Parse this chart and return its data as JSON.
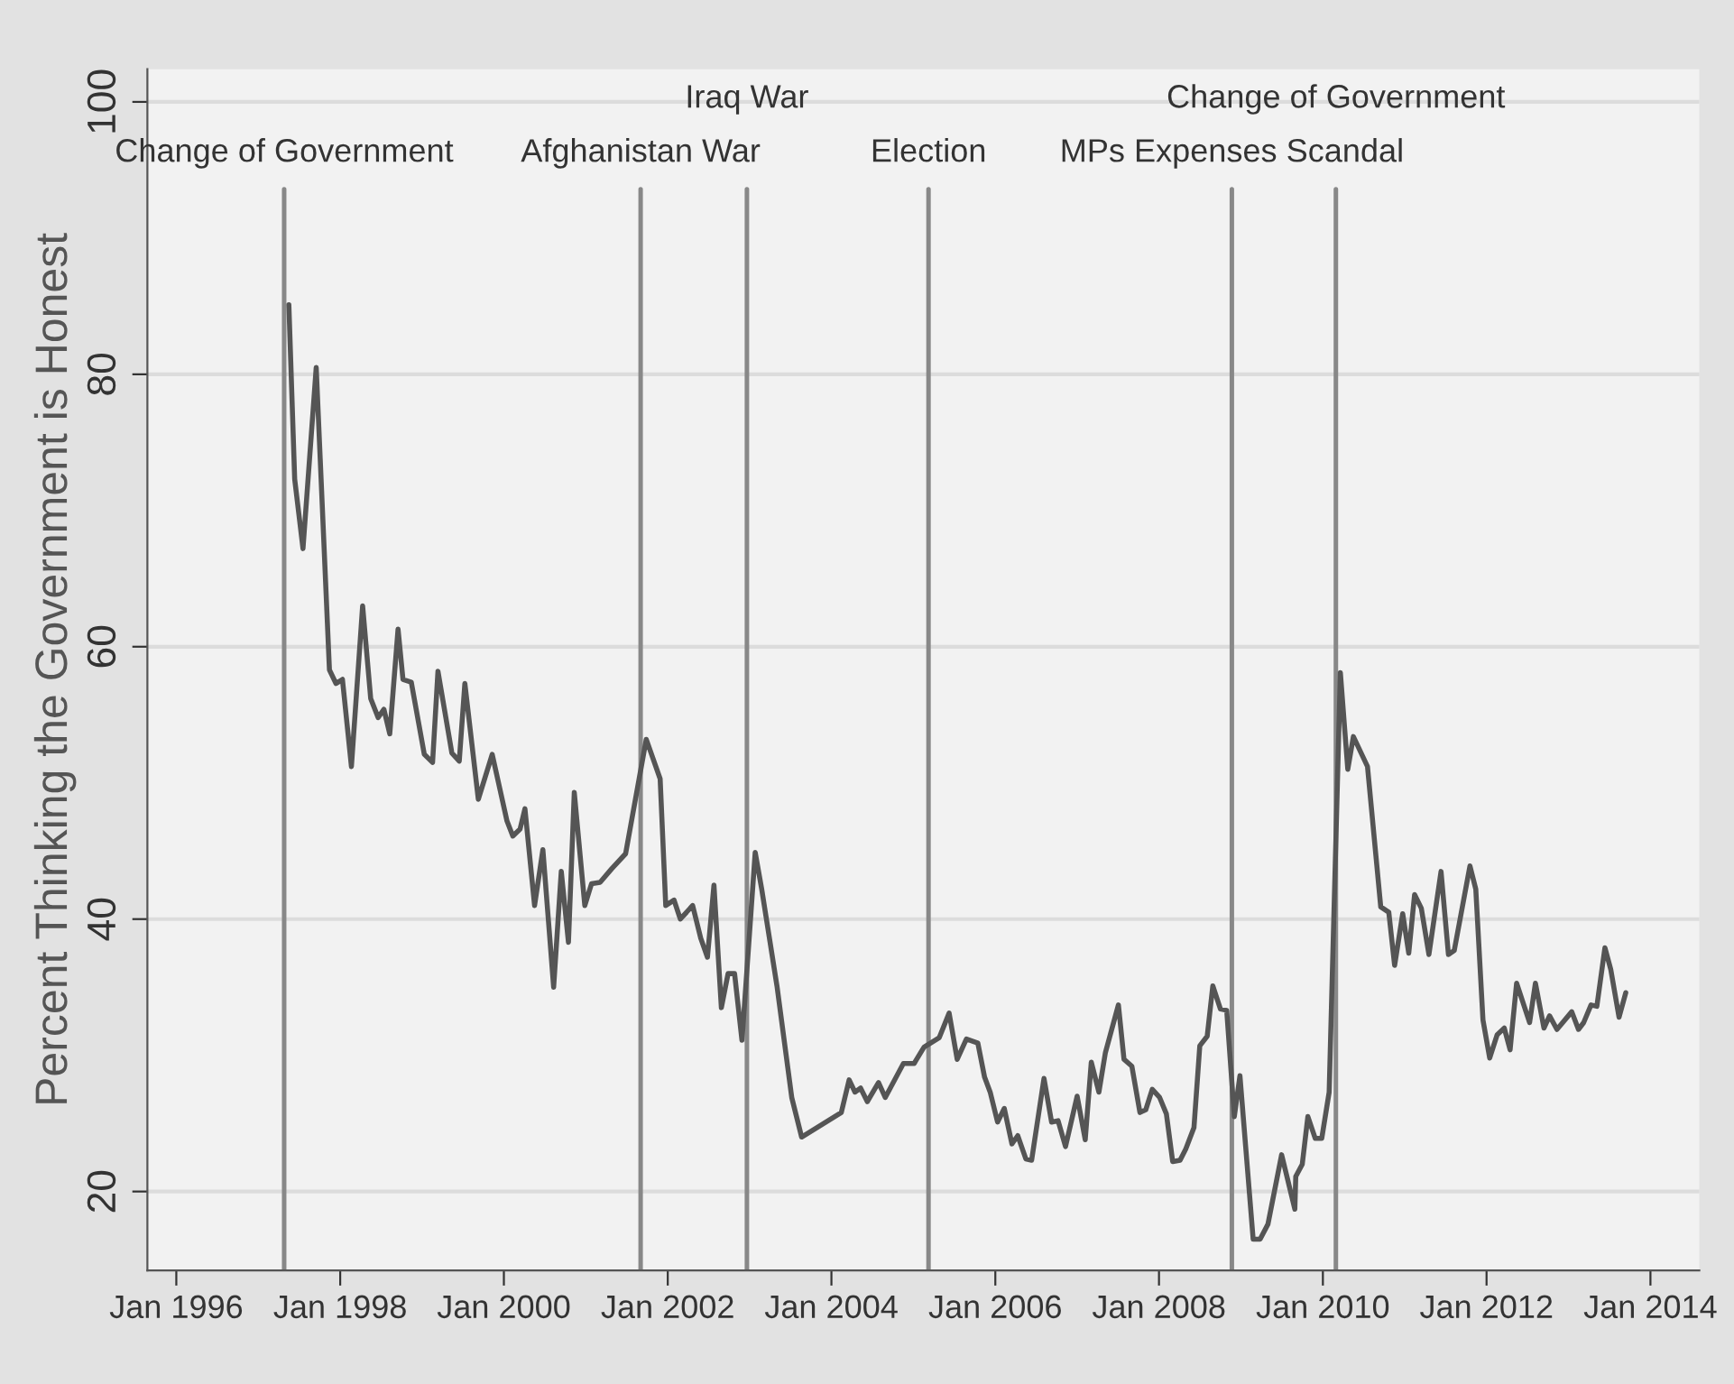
{
  "chart_data": {
    "type": "line",
    "ylabel": "Percent Thinking the Government is Honest",
    "xlim": [
      "1995-08-25",
      "2014-08-07"
    ],
    "ylim": [
      14.2,
      102.4
    ],
    "xticks": [
      {
        "value": "1996-01-01",
        "label": "Jan 1996"
      },
      {
        "value": "1998-01-01",
        "label": "Jan 1998"
      },
      {
        "value": "2000-01-01",
        "label": "Jan 2000"
      },
      {
        "value": "2002-01-01",
        "label": "Jan 2002"
      },
      {
        "value": "2004-01-01",
        "label": "Jan 2004"
      },
      {
        "value": "2006-01-01",
        "label": "Jan 2006"
      },
      {
        "value": "2008-01-01",
        "label": "Jan 2008"
      },
      {
        "value": "2010-01-01",
        "label": "Jan 2010"
      },
      {
        "value": "2012-01-01",
        "label": "Jan 2012"
      },
      {
        "value": "2014-01-01",
        "label": "Jan 2014"
      }
    ],
    "yticks": [
      20,
      40,
      60,
      80,
      100
    ],
    "grid": "y",
    "marker": "none",
    "line_style": "solid",
    "series": [
      {
        "color": "#555555",
        "x": [
          "1997-05-17",
          "1997-06-12",
          "1997-07-19",
          "1997-09-16",
          "1997-11-14",
          "1997-12-13",
          "1998-01-11",
          "1998-02-20",
          "1998-04-11",
          "1998-05-17",
          "1998-06-19",
          "1998-07-15",
          "1998-08-10",
          "1998-09-16",
          "1998-10-08",
          "1998-11-14",
          "1999-01-11",
          "1999-02-17",
          "1999-03-13",
          "1999-05-14",
          "1999-06-16",
          "1999-07-11",
          "1999-09-09",
          "1999-11-10",
          "2000-01-15",
          "2000-02-10",
          "2000-03-13",
          "2000-04-04",
          "2000-05-17",
          "2000-06-23",
          "2000-08-10",
          "2000-09-13",
          "2000-10-15",
          "2000-11-10",
          "2000-12-27",
          "2001-01-26",
          "2001-03-05",
          "2001-04-26",
          "2001-06-27",
          "2001-09-27",
          "2001-11-28",
          "2001-12-23",
          "2002-01-29",
          "2002-02-26",
          "2002-04-22",
          "2002-05-28",
          "2002-06-27",
          "2002-07-26",
          "2002-08-28",
          "2002-09-27",
          "2002-10-26",
          "2002-11-28",
          "2003-01-26",
          "2003-02-24",
          "2003-05-03",
          "2003-07-08",
          "2003-08-21",
          "2004-02-14",
          "2004-03-20",
          "2004-04-15",
          "2004-05-10",
          "2004-06-09",
          "2004-07-29",
          "2004-08-28",
          "2004-11-17",
          "2005-01-04",
          "2005-02-17",
          "2005-04-26",
          "2005-06-09",
          "2005-07-15",
          "2005-08-25",
          "2005-10-15",
          "2005-11-14",
          "2005-12-09",
          "2006-01-11",
          "2006-02-10",
          "2006-03-16",
          "2006-04-11",
          "2006-05-17",
          "2006-06-12",
          "2006-08-06",
          "2006-09-09",
          "2006-10-08",
          "2006-11-10",
          "2007-01-01",
          "2007-02-06",
          "2007-03-05",
          "2007-04-08",
          "2007-05-07",
          "2007-07-04",
          "2007-07-29",
          "2007-09-02",
          "2007-10-08",
          "2007-11-03",
          "2007-12-02",
          "2008-01-04",
          "2008-02-03",
          "2008-03-02",
          "2008-04-04",
          "2008-04-29",
          "2008-06-05",
          "2008-07-01",
          "2008-08-03",
          "2008-08-28",
          "2008-10-01",
          "2008-10-29",
          "2008-12-02",
          "2008-12-27",
          "2009-02-24",
          "2009-03-27",
          "2009-05-01",
          "2009-07-01",
          "2009-08-29",
          "2009-09-02",
          "2009-10-01",
          "2009-10-26",
          "2009-11-28",
          "2009-12-27",
          "2010-01-29",
          "2010-03-20",
          "2010-04-22",
          "2010-05-17",
          "2010-07-19",
          "2010-09-16",
          "2010-10-22",
          "2010-11-17",
          "2010-12-23",
          "2011-01-19",
          "2011-02-14",
          "2011-03-16",
          "2011-04-19",
          "2011-06-12",
          "2011-07-15",
          "2011-08-10",
          "2011-10-19",
          "2011-11-14",
          "2011-12-16",
          "2012-01-15",
          "2012-02-17",
          "2012-03-20",
          "2012-04-15",
          "2012-05-14",
          "2012-07-11",
          "2012-08-06",
          "2012-09-13",
          "2012-10-08",
          "2012-11-10",
          "2013-01-15",
          "2013-02-14",
          "2013-03-09",
          "2013-04-11",
          "2013-05-07",
          "2013-06-12",
          "2013-07-08",
          "2013-08-14",
          "2013-09-13"
        ],
        "values": [
          85.1,
          72.3,
          67.2,
          80.5,
          58.3,
          57.3,
          57.6,
          51.2,
          63.0,
          56.2,
          54.8,
          55.4,
          53.6,
          61.3,
          57.6,
          57.4,
          52.1,
          51.5,
          58.2,
          52.2,
          51.6,
          57.3,
          48.8,
          52.1,
          47.2,
          46.1,
          46.6,
          48.1,
          41.0,
          45.1,
          35.0,
          43.5,
          38.3,
          49.3,
          41.0,
          42.6,
          42.7,
          43.7,
          44.8,
          53.2,
          50.3,
          41.0,
          41.4,
          40.0,
          41.0,
          38.6,
          37.2,
          42.5,
          33.5,
          36.0,
          36.0,
          31.1,
          44.9,
          42.2,
          35.1,
          26.9,
          24.0,
          25.8,
          28.2,
          27.3,
          27.6,
          26.6,
          28.0,
          26.9,
          29.4,
          29.4,
          30.6,
          31.3,
          33.1,
          29.7,
          31.2,
          30.9,
          28.4,
          27.3,
          25.1,
          26.1,
          23.5,
          24.1,
          22.4,
          22.3,
          28.3,
          25.1,
          25.2,
          23.3,
          27.0,
          23.8,
          29.5,
          27.3,
          30.2,
          33.7,
          29.7,
          29.2,
          25.8,
          26.0,
          27.5,
          26.9,
          25.7,
          22.2,
          22.3,
          23.1,
          24.7,
          30.7,
          31.4,
          35.1,
          33.4,
          33.3,
          25.5,
          28.5,
          16.5,
          16.5,
          17.6,
          22.7,
          18.7,
          21.1,
          22.0,
          25.5,
          23.9,
          23.9,
          27.3,
          58.1,
          51.0,
          53.4,
          51.2,
          40.9,
          40.5,
          36.6,
          40.4,
          37.5,
          41.8,
          40.8,
          37.4,
          43.5,
          37.4,
          37.7,
          43.9,
          42.2,
          32.6,
          29.8,
          31.5,
          32.0,
          30.4,
          35.3,
          32.4,
          35.3,
          32.0,
          32.9,
          31.9,
          33.2,
          31.9,
          32.4,
          33.7,
          33.6,
          37.9,
          36.3,
          32.8,
          34.6
        ]
      }
    ],
    "ref_lines": [
      {
        "axis": "x",
        "value": "1997-04-26",
        "label": "Change of Government",
        "color": "#888888"
      },
      {
        "axis": "x",
        "value": "2001-09-02",
        "label": "Afghanistan War",
        "color": "#888888"
      },
      {
        "axis": "x",
        "value": "2002-12-20",
        "label": "Iraq War",
        "color": "#888888"
      },
      {
        "axis": "x",
        "value": "2005-03-09",
        "label": "Election",
        "color": "#888888"
      },
      {
        "axis": "x",
        "value": "2008-11-21",
        "label": "MPs Expenses Scandal",
        "color": "#888888"
      },
      {
        "axis": "x",
        "value": "2010-02-28",
        "label": "Change of Government",
        "color": "#888888"
      }
    ]
  }
}
